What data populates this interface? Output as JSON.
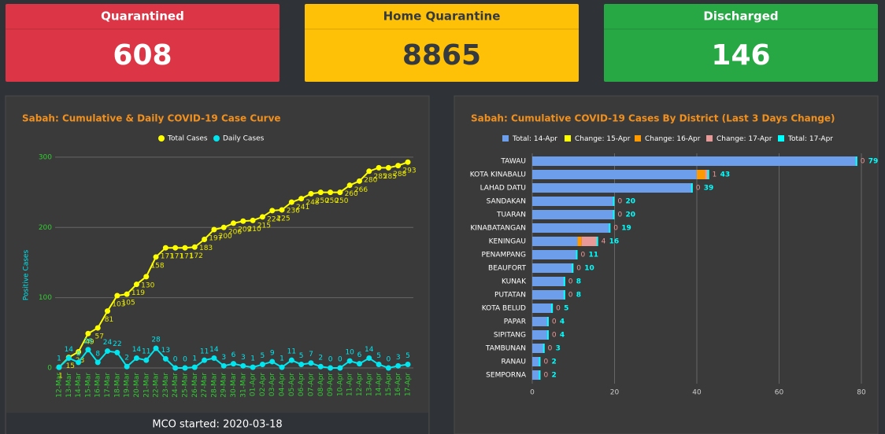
{
  "cards": [
    {
      "title": "Quarantined",
      "value": 608,
      "color": "#dc3545",
      "text": "#ffffff"
    },
    {
      "title": "Home Quarantine",
      "value": 8865,
      "color": "#ffc107",
      "text": "#343a40"
    },
    {
      "title": "Discharged",
      "value": 146,
      "color": "#28a745",
      "text": "#ffffff"
    }
  ],
  "chart_data": [
    {
      "type": "line",
      "title": "Sabah: Cumulative & Daily COVID-19 Case Curve",
      "ylabel": "Positive Cases",
      "categories": [
        "12-Mar",
        "13-Mar",
        "14-Mar",
        "15-Mar",
        "16-Mar",
        "17-Mar",
        "18-Mar",
        "19-Mar",
        "20-Mar",
        "21-Mar",
        "22-Mar",
        "23-Mar",
        "24-Mar",
        "25-Mar",
        "26-Mar",
        "27-Mar",
        "28-Mar",
        "29-Mar",
        "30-Mar",
        "31-Mar",
        "01-Apr",
        "02-Apr",
        "03-Apr",
        "04-Apr",
        "05-Apr",
        "06-Apr",
        "07-Apr",
        "08-Apr",
        "09-Apr",
        "10-Apr",
        "11-Apr",
        "12-Apr",
        "13-Apr",
        "14-Apr",
        "15-Apr",
        "16-Apr",
        "17-Apr"
      ],
      "series": [
        {
          "name": "Total Cases",
          "color": "#ffff00",
          "values": [
            1,
            15,
            23,
            49,
            57,
            81,
            103,
            105,
            119,
            130,
            158,
            171,
            171,
            171,
            172,
            183,
            197,
            200,
            206,
            209,
            210,
            215,
            224,
            225,
            236,
            241,
            248,
            250,
            250,
            250,
            260,
            266,
            280,
            285,
            285,
            288,
            293
          ]
        },
        {
          "name": "Daily Cases",
          "color": "#00e5ee",
          "values": [
            1,
            14,
            8,
            26,
            8,
            24,
            22,
            2,
            14,
            11,
            28,
            13,
            0,
            0,
            1,
            11,
            14,
            3,
            6,
            3,
            1,
            5,
            9,
            1,
            11,
            5,
            7,
            2,
            0,
            0,
            10,
            6,
            14,
            5,
            0,
            3,
            5
          ]
        }
      ],
      "ylim": [
        0,
        310
      ],
      "yticks": [
        0,
        100,
        200,
        300
      ],
      "grid": true,
      "legend": "top"
    },
    {
      "type": "bar",
      "orientation": "horizontal",
      "title": "Sabah: Cumulative COVID-19 Cases By District (Last 3 Days Change)",
      "categories": [
        "TAWAU",
        "KOTA KINABALU",
        "LAHAD DATU",
        "SANDAKAN",
        "TUARAN",
        "KINABATANGAN",
        "KENINGAU",
        "PENAMPANG",
        "BEAUFORT",
        "KUNAK",
        "PUTATAN",
        "KOTA BELUD",
        "PAPAR",
        "SIPITANG",
        "TAMBUNAN",
        "RANAU",
        "SEMPORNA"
      ],
      "series": [
        {
          "name": "Total: 14-Apr",
          "color": "#6d9eeb",
          "values": [
            79,
            40,
            39,
            20,
            20,
            19,
            11,
            11,
            10,
            8,
            8,
            5,
            4,
            4,
            3,
            2,
            2
          ]
        },
        {
          "name": "Change: 15-Apr",
          "color": "#ffff00",
          "values": [
            0,
            0,
            0,
            0,
            0,
            0,
            0,
            0,
            0,
            0,
            0,
            0,
            0,
            0,
            0,
            0,
            0
          ]
        },
        {
          "name": "Change: 16-Apr",
          "color": "#ff9900",
          "values": [
            0,
            2,
            0,
            0,
            0,
            0,
            1,
            0,
            0,
            0,
            0,
            0,
            0,
            0,
            0,
            0,
            0
          ]
        },
        {
          "name": "Change: 17-Apr",
          "color": "#ea9999",
          "values": [
            0,
            1,
            0,
            0,
            0,
            0,
            4,
            0,
            0,
            0,
            0,
            0,
            0,
            0,
            0,
            0,
            0
          ]
        },
        {
          "name": "Total: 17-Apr",
          "color": "#00ffff",
          "stacked": false,
          "values": [
            79,
            43,
            39,
            20,
            20,
            19,
            16,
            11,
            10,
            8,
            8,
            5,
            4,
            4,
            3,
            2,
            2
          ]
        }
      ],
      "xlim": [
        0,
        84
      ],
      "xticks": [
        0,
        20,
        40,
        60,
        80
      ],
      "grid": true,
      "legend": "top"
    }
  ],
  "footer": "MCO started: 2020-03-18"
}
